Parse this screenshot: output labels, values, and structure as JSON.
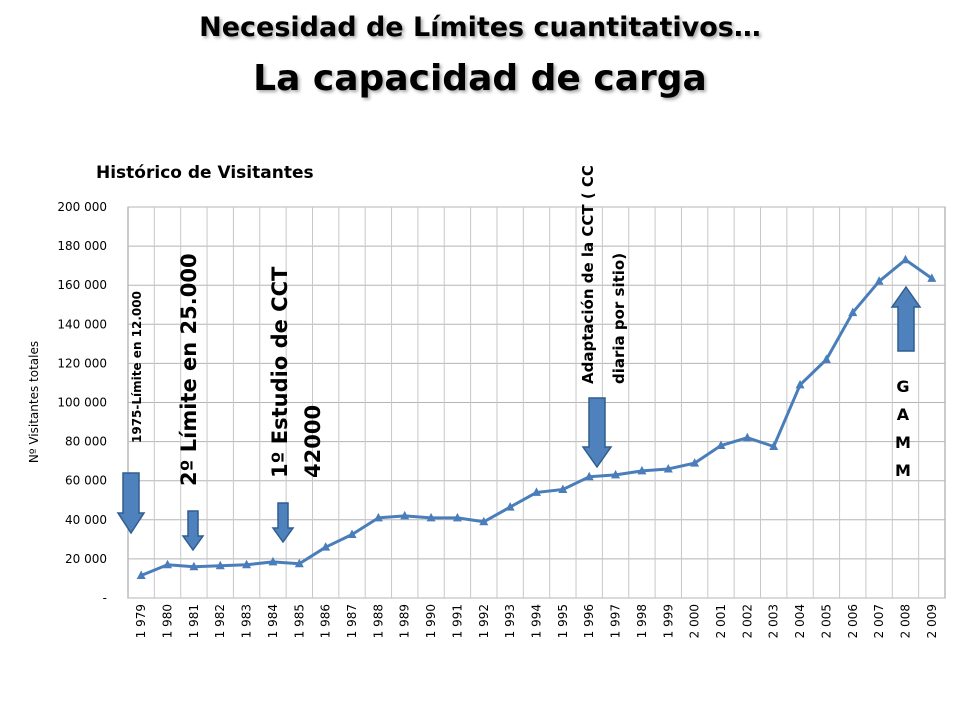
{
  "header": {
    "title": "Necesidad de Límites cuantitativos…",
    "subtitle": "La capacidad de carga"
  },
  "chart_data": {
    "type": "line",
    "title": "Histórico de Visitantes",
    "xlabel": "",
    "ylabel": "Nº Visitantes totales",
    "categories": [
      "1 979",
      "1 980",
      "1 981",
      "1 982",
      "1 983",
      "1 984",
      "1 985",
      "1 986",
      "1 987",
      "1 988",
      "1 989",
      "1 990",
      "1 991",
      "1 992",
      "1 993",
      "1 994",
      "1 995",
      "1 996",
      "1 997",
      "1 998",
      "1 999",
      "2 000",
      "2 001",
      "2 002",
      "2 003",
      "2 004",
      "2 005",
      "2 006",
      "2 007",
      "2 008",
      "2 009"
    ],
    "series": [
      {
        "values": [
          11500,
          17000,
          16000,
          16500,
          17000,
          18500,
          17500,
          26000,
          32500,
          41000,
          42000,
          41000,
          41000,
          39000,
          46500,
          54000,
          55500,
          62000,
          63000,
          65000,
          66000,
          69000,
          78000,
          82000,
          77500,
          109000,
          122000,
          146000,
          162000,
          173000,
          163500
        ]
      }
    ],
    "yticks": [
      "-",
      "20 000",
      "40 000",
      "60 000",
      "80 000",
      "100 000",
      "120 000",
      "140 000",
      "160 000",
      "180 000",
      "200 000"
    ],
    "ylim": [
      0,
      200000
    ],
    "grid": true,
    "line_color": "#4a7ebb",
    "arrow_color": "#4f81bd",
    "annotations": [
      {
        "text": "1975-Límite en 12.000",
        "arrow": "down"
      },
      {
        "text": "2º Límite en 25.000",
        "arrow": "down"
      },
      {
        "text": "1º Estudio de CCT",
        "text2": "42000",
        "arrow": "down"
      },
      {
        "text": "Adaptación de la CCT ( CC",
        "text2": "diaria por sitio)",
        "arrow": "down"
      },
      {
        "text": "GAMM",
        "arrow": "up"
      }
    ]
  }
}
